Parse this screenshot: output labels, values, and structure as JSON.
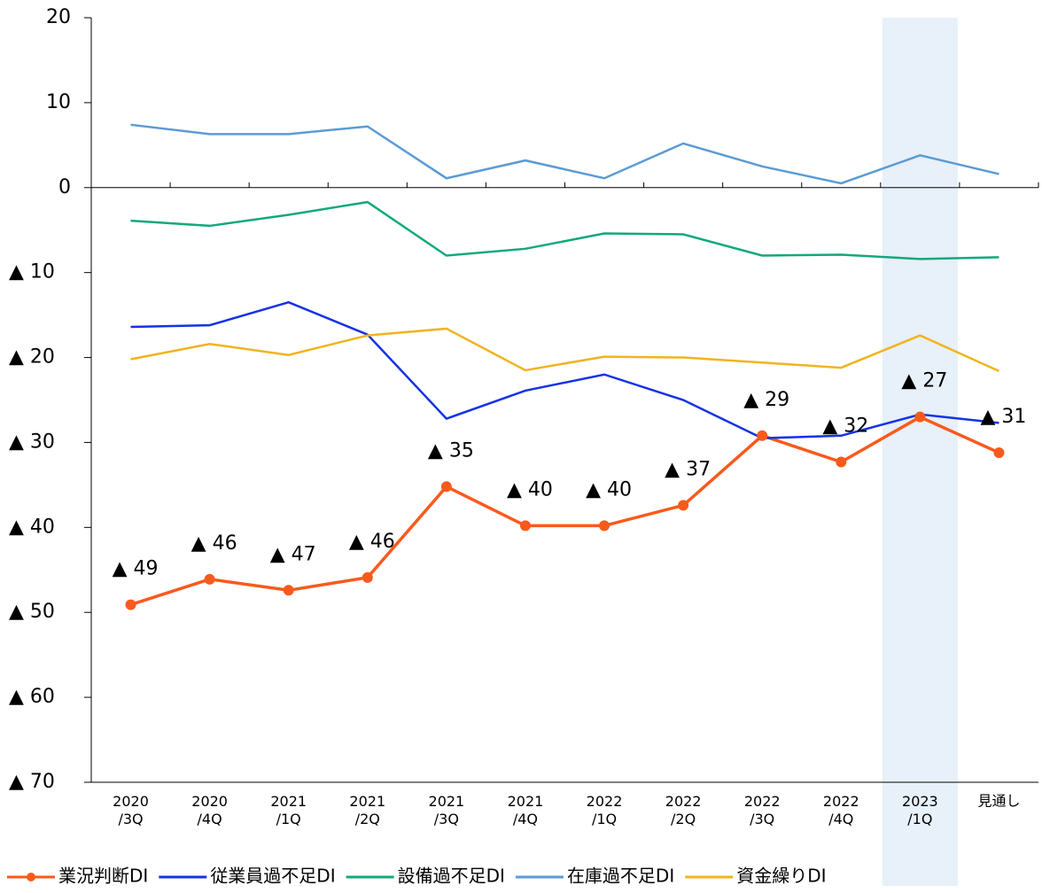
{
  "chart_data": {
    "type": "line",
    "categories": [
      "2020\n/3Q",
      "2020\n/4Q",
      "2021\n/1Q",
      "2021\n/2Q",
      "2021\n/3Q",
      "2021\n/4Q",
      "2022\n/1Q",
      "2022\n/2Q",
      "2022\n/3Q",
      "2022\n/4Q",
      "2023\n/1Q",
      "見通し"
    ],
    "series": [
      {
        "name": "業況判断DI",
        "color": "#f95a1c",
        "marker": true,
        "values": [
          -49.1,
          -46.1,
          -47.4,
          -45.9,
          -35.2,
          -39.8,
          -39.8,
          -37.4,
          -29.2,
          -32.3,
          -27.0,
          -31.2
        ],
        "value_labels": [
          "▲ 49",
          "▲ 46",
          "▲ 47",
          "▲ 46",
          "▲ 35",
          "▲ 40",
          "▲ 40",
          "▲ 37",
          "▲ 29",
          "▲ 32",
          "▲ 27",
          "▲ 31"
        ]
      },
      {
        "name": "従業員過不足DI",
        "color": "#1432e6",
        "values": [
          -16.4,
          -16.2,
          -13.5,
          -17.3,
          -27.2,
          -23.9,
          -22.0,
          -25.0,
          -29.5,
          -29.2,
          -26.7,
          -27.7
        ]
      },
      {
        "name": "設備過不足DI",
        "color": "#14a87c",
        "values": [
          -3.9,
          -4.5,
          -3.2,
          -1.7,
          -8.0,
          -7.2,
          -5.4,
          -5.5,
          -8.0,
          -7.9,
          -8.4,
          -8.2
        ]
      },
      {
        "name": "在庫過不足DI",
        "color": "#5b9bd5",
        "values": [
          7.4,
          6.3,
          6.3,
          7.2,
          1.1,
          3.2,
          1.1,
          5.2,
          2.5,
          0.5,
          3.8,
          1.6
        ]
      },
      {
        "name": "資金繰りDI",
        "color": "#f0b41e",
        "values": [
          -20.2,
          -18.4,
          -19.7,
          -17.4,
          -16.6,
          -21.5,
          -19.9,
          -20.0,
          -20.6,
          -21.2,
          -17.4,
          -21.6
        ]
      }
    ],
    "ylim": [
      -70,
      20
    ],
    "yticks": [
      20,
      10,
      0,
      {
        "value": -10,
        "label": "▲ 10"
      },
      {
        "value": -20,
        "label": "▲ 20"
      },
      {
        "value": -30,
        "label": "▲ 30"
      },
      {
        "value": -40,
        "label": "▲ 40"
      },
      {
        "value": -50,
        "label": "▲ 50"
      },
      {
        "value": -60,
        "label": "▲ 60"
      },
      {
        "value": -70,
        "label": "▲ 70"
      }
    ],
    "highlight_category_index": 10,
    "legend": "bottom"
  }
}
